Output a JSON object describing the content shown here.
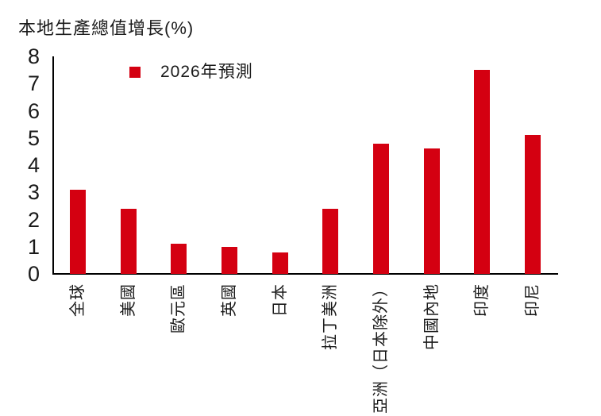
{
  "title": "本地生產總值增長(%)",
  "legend": {
    "label": "2026年預測",
    "marker_color": "#d40011"
  },
  "colors": {
    "bar": "#d40011",
    "axis": "#000000",
    "text": "#1a1a1a"
  },
  "chart_data": {
    "type": "bar",
    "title": "本地生產總值增長(%)",
    "categories": [
      "全球",
      "美國",
      "歐元區",
      "英國",
      "日本",
      "拉丁美洲",
      "亞洲（日本除外）",
      "中國內地",
      "印度",
      "印尼"
    ],
    "values": [
      3.1,
      2.4,
      1.1,
      1.0,
      0.8,
      2.4,
      4.8,
      4.6,
      7.5,
      5.1
    ],
    "series": [
      {
        "name": "2026年預測",
        "values": [
          3.1,
          2.4,
          1.1,
          1.0,
          0.8,
          2.4,
          4.8,
          4.6,
          7.5,
          5.1
        ]
      }
    ],
    "xlabel": "",
    "ylabel": "",
    "ylim": [
      0,
      8
    ],
    "yticks": [
      0,
      1,
      2,
      3,
      4,
      5,
      6,
      7,
      8
    ],
    "grid": false,
    "legend_entries": [
      "2026年預測"
    ],
    "legend_position": "top-inside-left",
    "bar_color": "#d40011",
    "x_labels_rotation_deg": -90
  }
}
